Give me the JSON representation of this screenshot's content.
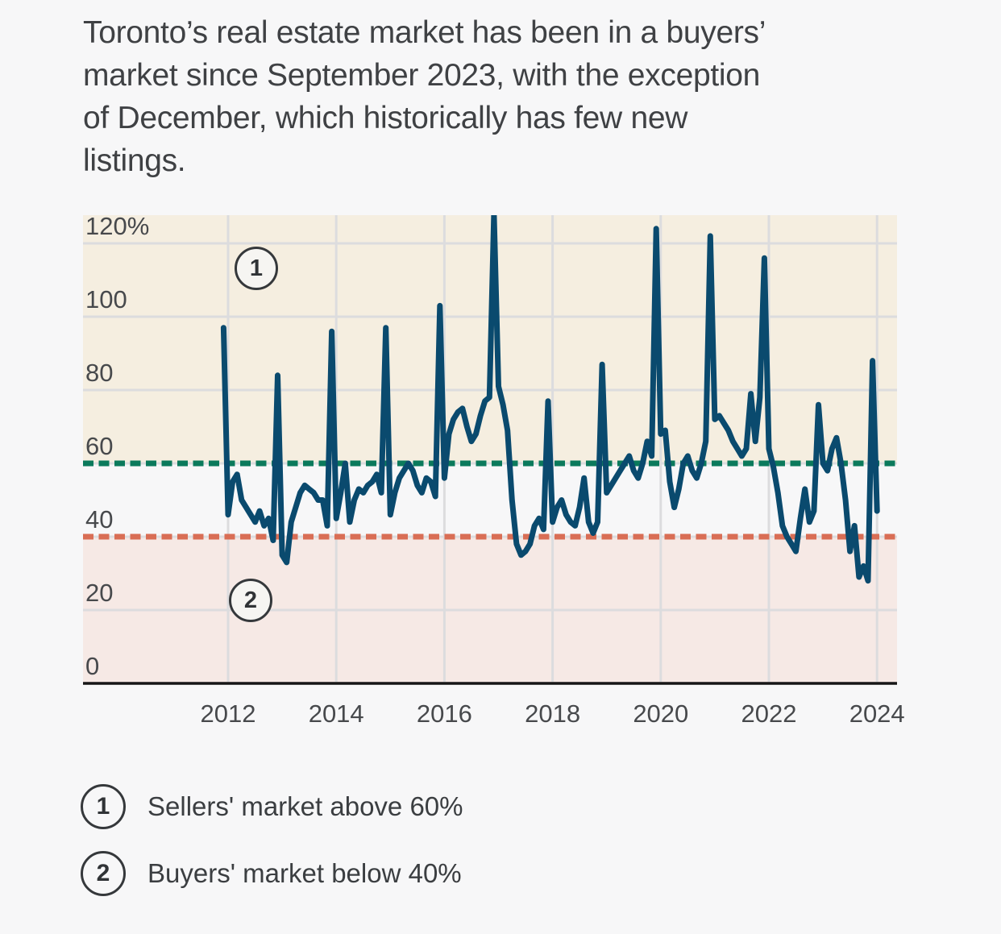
{
  "page": {
    "background": "#f7f7f8"
  },
  "title_lines": [
    "Toronto’s real estate market has been in a buyers’",
    "market since September 2023, with the exception",
    "of December, which historically has few new",
    "listings."
  ],
  "chart_data": {
    "type": "line",
    "title": "Toronto’s real estate market has been in a buyers’ market since September 2023, with the exception of December, which historically has few new listings.",
    "x_start": "2011-12",
    "x_interval": "month",
    "n_points": 146,
    "series": [
      {
        "name": "Sales-to-new-listings ratio (%)",
        "values": [
          97,
          46,
          55,
          57,
          50,
          48,
          46,
          44,
          47,
          43,
          45,
          39,
          84,
          35,
          33,
          44,
          48,
          52,
          54,
          53,
          52,
          50,
          50,
          43,
          96,
          45,
          52,
          60,
          44,
          50,
          53,
          52,
          54,
          55,
          57,
          52,
          97,
          46,
          52,
          56,
          58,
          60,
          58,
          54,
          52,
          56,
          55,
          51,
          103,
          56,
          68,
          72,
          74,
          75,
          70,
          66,
          68,
          73,
          77,
          78,
          128,
          81,
          76,
          69,
          50,
          38,
          35,
          36,
          38,
          43,
          45,
          42,
          77,
          44,
          48,
          50,
          46,
          44,
          43,
          48,
          56,
          44,
          41,
          44,
          87,
          52,
          54,
          56,
          58,
          60,
          62,
          58,
          56,
          60,
          66,
          62,
          124,
          68,
          69,
          55,
          48,
          53,
          60,
          62,
          58,
          56,
          60,
          66,
          122,
          72,
          73,
          71,
          69,
          66,
          64,
          62,
          64,
          79,
          66,
          78,
          116,
          64,
          59,
          52,
          43,
          40,
          38,
          36,
          45,
          53,
          44,
          47,
          76,
          60,
          58,
          64,
          67,
          60,
          50,
          36,
          43,
          29,
          32,
          28,
          88,
          47
        ]
      }
    ],
    "line_color": "#0a4a6e",
    "ylim": [
      0,
      128
    ],
    "grid": true,
    "yticks": [
      {
        "value": 120,
        "label": "120%"
      },
      {
        "value": 100,
        "label": "100"
      },
      {
        "value": 80,
        "label": "80"
      },
      {
        "value": 60,
        "label": "60"
      },
      {
        "value": 40,
        "label": "40"
      },
      {
        "value": 20,
        "label": "20"
      },
      {
        "value": 0,
        "label": "0"
      }
    ],
    "xticks": [
      {
        "value": 2012,
        "label": "2012"
      },
      {
        "value": 2014,
        "label": "2014"
      },
      {
        "value": 2016,
        "label": "2016"
      },
      {
        "value": 2018,
        "label": "2018"
      },
      {
        "value": 2020,
        "label": "2020"
      },
      {
        "value": 2022,
        "label": "2022"
      },
      {
        "value": 2024,
        "label": "2024"
      }
    ],
    "thresholds": [
      {
        "value": 60,
        "color": "#0b7a5c",
        "meaning": "Sellers' market above 60%"
      },
      {
        "value": 40,
        "color": "#d96e55",
        "meaning": "Buyers' market below 40%"
      }
    ],
    "bands": [
      {
        "from": 60,
        "to": 128,
        "color": "#f5eee0",
        "meaning": "sellers-market-zone"
      },
      {
        "from": 40,
        "to": 60,
        "color": "#f7f7f8",
        "meaning": "balanced-zone"
      },
      {
        "from": 0,
        "to": 40,
        "color": "#f6e9e5",
        "meaning": "buyers-market-zone"
      }
    ],
    "annotations": [
      {
        "label": "1",
        "region": "sellers-market-zone"
      },
      {
        "label": "2",
        "region": "buyers-market-zone"
      }
    ],
    "colors": {
      "gridline": "#dcdcde",
      "axis": "#161616",
      "tick_text": "#47494c"
    }
  },
  "legend": {
    "items": [
      {
        "marker": "1",
        "label": "Sellers' market above 60%"
      },
      {
        "marker": "2",
        "label": "Buyers' market below 40%"
      }
    ]
  }
}
